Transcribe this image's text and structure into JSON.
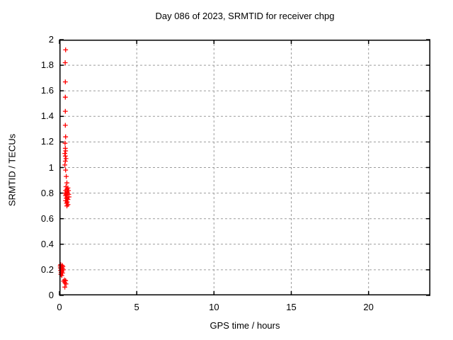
{
  "chart_data": {
    "type": "scatter",
    "title": "Day 086 of 2023, SRMTID for receiver chpg",
    "xlabel": "GPS time / hours",
    "ylabel": "SRMTID / TECUs",
    "xlim": [
      0,
      24
    ],
    "ylim": [
      0,
      2
    ],
    "xticks": [
      0,
      5,
      10,
      15,
      20
    ],
    "xtick_labels": [
      "0",
      "5",
      "10",
      "15",
      "20"
    ],
    "yticks": [
      0,
      0.2,
      0.4,
      0.6,
      0.8,
      1,
      1.2,
      1.4,
      1.6,
      1.8,
      2
    ],
    "ytick_labels": [
      "0",
      "0.2",
      "0.4",
      "0.6",
      "0.8",
      "1",
      "1.2",
      "1.4",
      "1.6",
      "1.8",
      "2"
    ],
    "grid": true,
    "legend": "none",
    "marker": "plus",
    "marker_color": "#ff0000",
    "grid_color": "#9c9c9c",
    "axis_color": "#000000",
    "points": [
      [
        0.4,
        1.92
      ],
      [
        0.37,
        1.82
      ],
      [
        0.38,
        1.67
      ],
      [
        0.38,
        1.55
      ],
      [
        0.38,
        1.44
      ],
      [
        0.38,
        1.33
      ],
      [
        0.4,
        1.24
      ],
      [
        0.36,
        1.19
      ],
      [
        0.38,
        1.15
      ],
      [
        0.4,
        1.13
      ],
      [
        0.35,
        1.11
      ],
      [
        0.38,
        1.09
      ],
      [
        0.42,
        1.07
      ],
      [
        0.38,
        1.05
      ],
      [
        0.35,
        1.02
      ],
      [
        0.4,
        0.98
      ],
      [
        0.44,
        0.93
      ],
      [
        0.48,
        0.88
      ],
      [
        0.42,
        0.85
      ],
      [
        0.55,
        0.84
      ],
      [
        0.48,
        0.83
      ],
      [
        0.4,
        0.82
      ],
      [
        0.58,
        0.82
      ],
      [
        0.5,
        0.81
      ],
      [
        0.36,
        0.8
      ],
      [
        0.52,
        0.8
      ],
      [
        0.44,
        0.79
      ],
      [
        0.6,
        0.79
      ],
      [
        0.4,
        0.78
      ],
      [
        0.5,
        0.77
      ],
      [
        0.62,
        0.77
      ],
      [
        0.44,
        0.76
      ],
      [
        0.55,
        0.75
      ],
      [
        0.4,
        0.74
      ],
      [
        0.5,
        0.73
      ],
      [
        0.46,
        0.72
      ],
      [
        0.55,
        0.71
      ],
      [
        0.48,
        0.7
      ],
      [
        0.08,
        0.24
      ],
      [
        0.18,
        0.235
      ],
      [
        0.05,
        0.23
      ],
      [
        0.22,
        0.225
      ],
      [
        0.14,
        0.22
      ],
      [
        0.06,
        0.215
      ],
      [
        0.2,
        0.21
      ],
      [
        0.12,
        0.205
      ],
      [
        0.25,
        0.2
      ],
      [
        0.08,
        0.195
      ],
      [
        0.16,
        0.19
      ],
      [
        0.11,
        0.18
      ],
      [
        0.2,
        0.175
      ],
      [
        0.09,
        0.165
      ],
      [
        0.15,
        0.155
      ],
      [
        0.32,
        0.12
      ],
      [
        0.4,
        0.115
      ],
      [
        0.27,
        0.11
      ],
      [
        0.35,
        0.1
      ],
      [
        0.42,
        0.09
      ],
      [
        0.35,
        0.065
      ]
    ]
  }
}
